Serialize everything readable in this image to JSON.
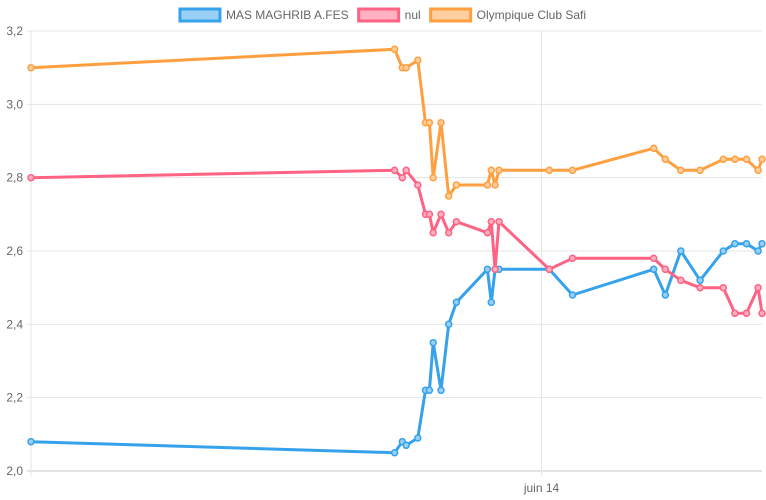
{
  "chart_data": {
    "type": "line",
    "title": "",
    "xlabel": "",
    "ylabel": "",
    "ylim": [
      2.0,
      3.2
    ],
    "y_ticks": [
      "3,2",
      "3,0",
      "2,8",
      "2,6",
      "2,4",
      "2,2",
      "2,0"
    ],
    "x_ticks": [
      {
        "label": "juin 14",
        "x": 66
      }
    ],
    "grid": true,
    "legend_position": "top",
    "x": [
      0,
      47.0,
      48.0,
      48.5,
      50.0,
      51.0,
      51.5,
      52.0,
      53.0,
      54.0,
      55.0,
      59.0,
      59.5,
      60.0,
      60.5,
      67.0,
      70.0,
      80.5,
      82.0,
      84.0,
      86.5,
      89.5,
      91.0,
      92.5,
      94.0,
      94.5
    ],
    "series": [
      {
        "name": "MAS MAGHRIB A.FES",
        "color": "#36a2eb",
        "fill": "#9ad0f5",
        "values": [
          2.08,
          2.05,
          2.08,
          2.07,
          2.09,
          2.22,
          2.22,
          2.35,
          2.22,
          2.4,
          2.46,
          2.55,
          2.46,
          2.55,
          2.55,
          2.55,
          2.48,
          2.55,
          2.48,
          2.6,
          2.52,
          2.6,
          2.62,
          2.62,
          2.6,
          2.62
        ]
      },
      {
        "name": "nul",
        "color": "#ff6384",
        "fill": "#ffb1c1",
        "values": [
          2.8,
          2.82,
          2.8,
          2.82,
          2.78,
          2.7,
          2.7,
          2.65,
          2.7,
          2.65,
          2.68,
          2.65,
          2.68,
          2.55,
          2.68,
          2.55,
          2.58,
          2.58,
          2.55,
          2.52,
          2.5,
          2.5,
          2.43,
          2.43,
          2.5,
          2.43
        ]
      },
      {
        "name": "Olympique Club Safi",
        "color": "#ff9f40",
        "fill": "#ffcf9f",
        "values": [
          3.1,
          3.15,
          3.1,
          3.1,
          3.12,
          2.95,
          2.95,
          2.8,
          2.95,
          2.75,
          2.78,
          2.78,
          2.82,
          2.78,
          2.82,
          2.82,
          2.82,
          2.88,
          2.85,
          2.82,
          2.82,
          2.85,
          2.85,
          2.85,
          2.82,
          2.85
        ]
      }
    ]
  }
}
